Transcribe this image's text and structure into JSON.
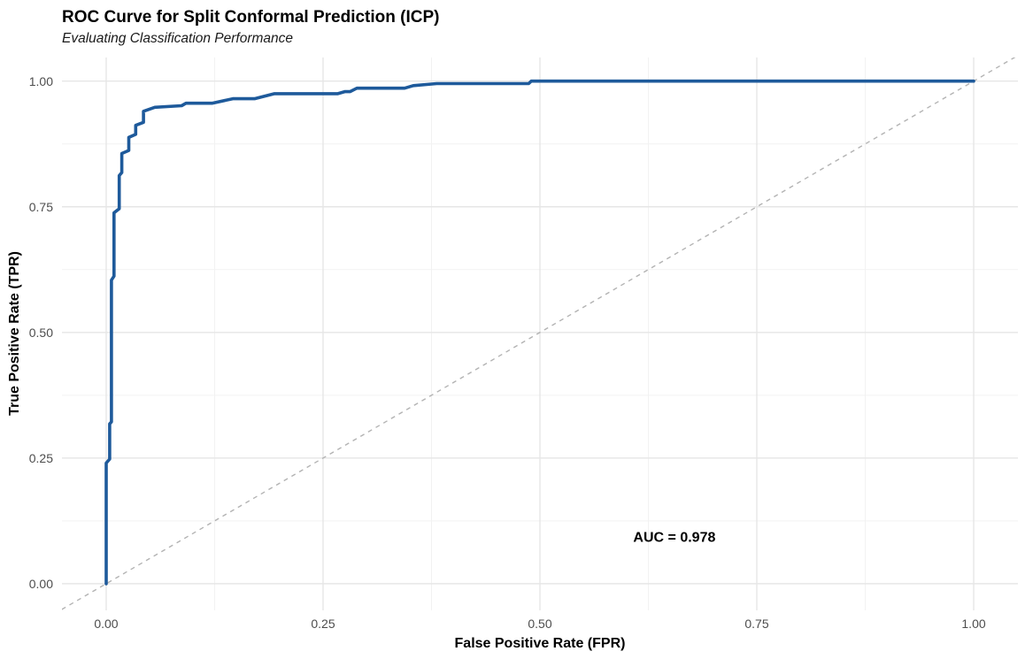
{
  "chart_data": {
    "type": "line",
    "title": "ROC Curve for Split Conformal Prediction (ICP)",
    "subtitle": "Evaluating Classification Performance",
    "xlabel": "False Positive Rate (FPR)",
    "ylabel": "True Positive Rate (TPR)",
    "xlim": [
      -0.051,
      1.051
    ],
    "ylim": [
      -0.053,
      1.047
    ],
    "x_ticks": {
      "values": [
        0,
        0.25,
        0.5,
        0.75,
        1.0
      ],
      "labels": [
        "0.00",
        "0.25",
        "0.50",
        "0.75",
        "1.00"
      ]
    },
    "y_ticks": {
      "values": [
        0,
        0.25,
        0.5,
        0.75,
        1.0
      ],
      "labels": [
        "0.00",
        "0.25",
        "0.50",
        "0.75",
        "1.00"
      ]
    },
    "x_minor_ticks": [
      0.125,
      0.375,
      0.625,
      0.875
    ],
    "y_minor_ticks": [
      0.125,
      0.375,
      0.625,
      0.875
    ],
    "grid": "major-and-minor",
    "legend_position": "none",
    "auc": 0.978,
    "annotation": {
      "text": "AUC = 0.978",
      "x": 0.655,
      "y": 0.092
    },
    "roc_curve": {
      "color": "#1E5A9B",
      "stroke_width": 3.6,
      "points": [
        [
          0.0,
          0.0
        ],
        [
          0.0,
          0.24
        ],
        [
          0.004,
          0.248
        ],
        [
          0.004,
          0.318
        ],
        [
          0.006,
          0.322
        ],
        [
          0.006,
          0.604
        ],
        [
          0.009,
          0.612
        ],
        [
          0.009,
          0.738
        ],
        [
          0.015,
          0.746
        ],
        [
          0.015,
          0.812
        ],
        [
          0.018,
          0.818
        ],
        [
          0.018,
          0.856
        ],
        [
          0.026,
          0.862
        ],
        [
          0.026,
          0.888
        ],
        [
          0.034,
          0.894
        ],
        [
          0.034,
          0.912
        ],
        [
          0.043,
          0.918
        ],
        [
          0.043,
          0.94
        ],
        [
          0.056,
          0.948
        ],
        [
          0.087,
          0.951
        ],
        [
          0.092,
          0.956
        ],
        [
          0.122,
          0.956
        ],
        [
          0.146,
          0.965
        ],
        [
          0.171,
          0.965
        ],
        [
          0.194,
          0.975
        ],
        [
          0.267,
          0.975
        ],
        [
          0.275,
          0.979
        ],
        [
          0.281,
          0.979
        ],
        [
          0.289,
          0.986
        ],
        [
          0.344,
          0.986
        ],
        [
          0.354,
          0.991
        ],
        [
          0.381,
          0.995
        ],
        [
          0.487,
          0.995
        ],
        [
          0.49,
          1.0
        ],
        [
          1.0,
          1.0
        ]
      ]
    },
    "reference_line": {
      "style": "dashed",
      "color": "#B3B3B3",
      "stroke_width": 1.4,
      "dash": [
        5,
        5
      ],
      "from": [
        -0.06,
        -0.06
      ],
      "to": [
        1.06,
        1.06
      ]
    }
  },
  "colors": {
    "background": "#FFFFFF",
    "grid_major": "#E6E6E6",
    "grid_minor": "#F2F2F2",
    "tick_label": "#4D4D4D",
    "text": "#000000"
  }
}
